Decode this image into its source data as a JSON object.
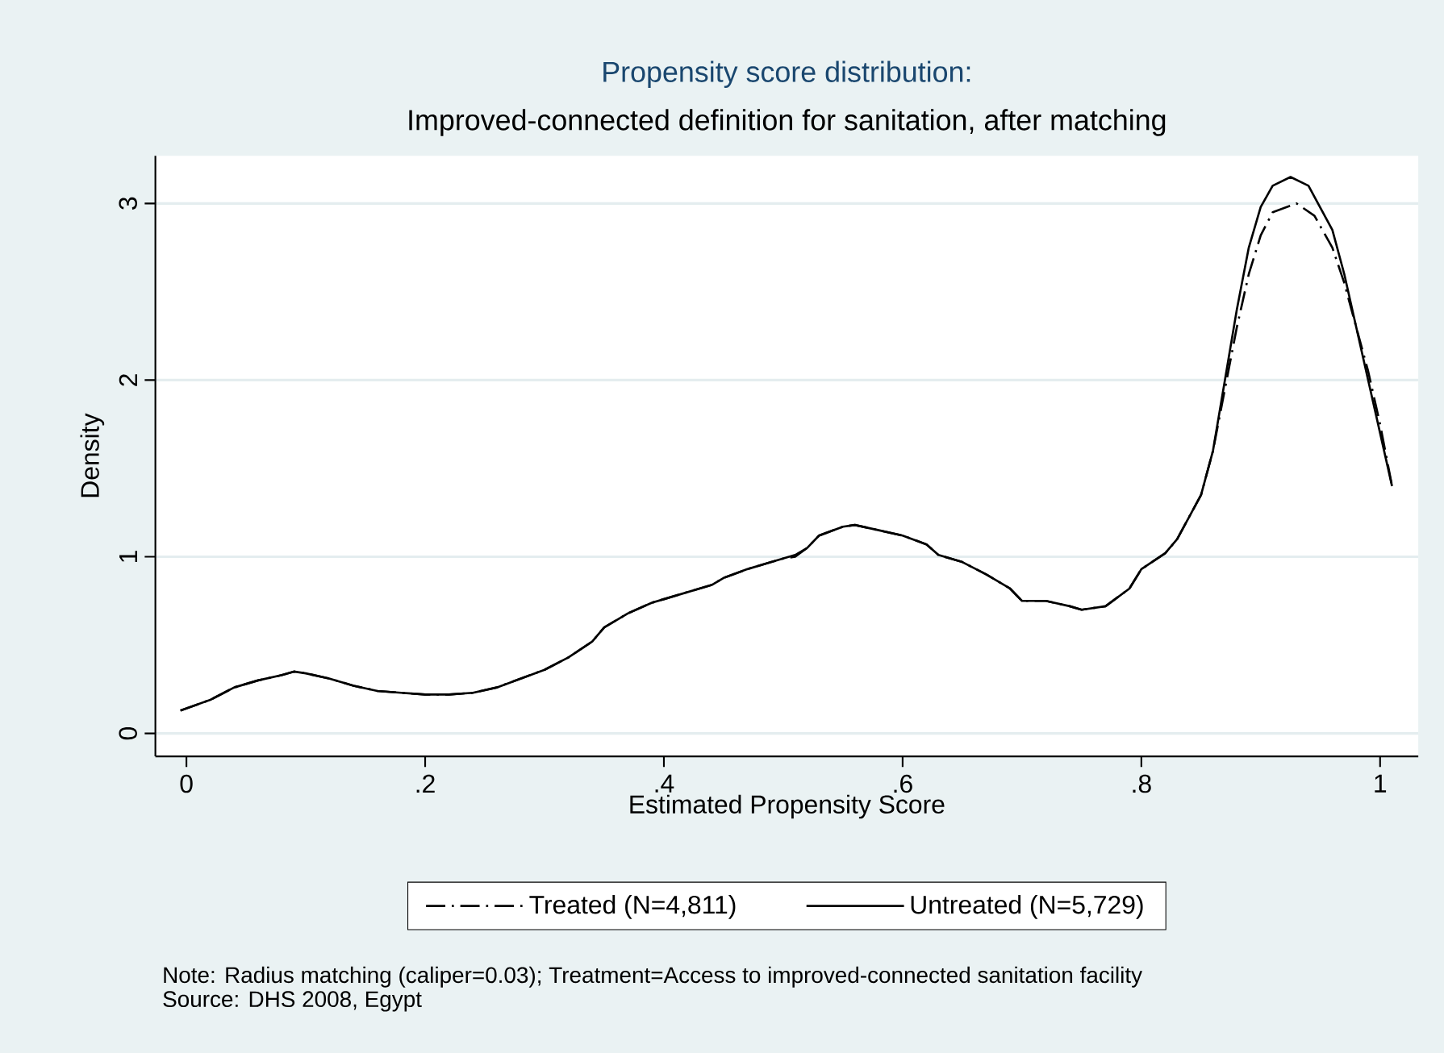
{
  "chart_data": {
    "type": "line",
    "title": "Propensity score distribution:",
    "subtitle": "Improved-connected definition for sanitation, after matching",
    "xlabel": "Estimated Propensity Score",
    "ylabel": "Density",
    "xlim": [
      -0.026,
      1.032
    ],
    "ylim": [
      -0.13,
      3.27
    ],
    "xticks": [
      0,
      {
        "value": 0.2,
        "label": ".2"
      },
      {
        "value": 0.4,
        "label": ".4"
      },
      {
        "value": 0.6,
        "label": ".6"
      },
      {
        "value": 0.8,
        "label": ".8"
      },
      1
    ],
    "yticks": [
      0,
      1,
      2,
      3
    ],
    "grid": "y",
    "legend": "bottom",
    "marker": "none",
    "series": [
      {
        "name": "Treated (N=4,811)",
        "color": "#000000",
        "line_style": "dashdot",
        "x": [
          -0.005,
          0.02,
          0.04,
          0.06,
          0.08,
          0.09,
          0.1,
          0.12,
          0.14,
          0.16,
          0.18,
          0.2,
          0.22,
          0.24,
          0.26,
          0.28,
          0.3,
          0.32,
          0.34,
          0.35,
          0.37,
          0.39,
          0.4,
          0.42,
          0.44,
          0.45,
          0.47,
          0.49,
          0.5,
          0.51,
          0.52,
          0.53,
          0.55,
          0.56,
          0.58,
          0.6,
          0.62,
          0.63,
          0.65,
          0.67,
          0.69,
          0.7,
          0.72,
          0.74,
          0.75,
          0.77,
          0.79,
          0.8,
          0.82,
          0.83,
          0.85,
          0.86,
          0.87,
          0.88,
          0.89,
          0.9,
          0.91,
          0.93,
          0.945,
          0.96,
          0.97,
          0.98,
          0.99,
          1.0,
          1.01
        ],
        "values": [
          0.13,
          0.19,
          0.26,
          0.3,
          0.33,
          0.35,
          0.34,
          0.31,
          0.27,
          0.24,
          0.23,
          0.22,
          0.22,
          0.23,
          0.26,
          0.31,
          0.36,
          0.43,
          0.52,
          0.6,
          0.68,
          0.74,
          0.76,
          0.8,
          0.84,
          0.88,
          0.93,
          0.97,
          0.99,
          1.0,
          1.05,
          1.12,
          1.17,
          1.18,
          1.15,
          1.12,
          1.07,
          1.01,
          0.97,
          0.9,
          0.82,
          0.75,
          0.75,
          0.72,
          0.7,
          0.72,
          0.82,
          0.93,
          1.02,
          1.1,
          1.35,
          1.6,
          1.95,
          2.3,
          2.6,
          2.82,
          2.95,
          3.0,
          2.93,
          2.75,
          2.55,
          2.3,
          2.05,
          1.75,
          1.4
        ]
      },
      {
        "name": "Untreated (N=5,729)",
        "color": "#000000",
        "line_style": "solid",
        "x": [
          -0.005,
          0.02,
          0.04,
          0.06,
          0.08,
          0.09,
          0.1,
          0.12,
          0.14,
          0.16,
          0.18,
          0.2,
          0.22,
          0.24,
          0.26,
          0.28,
          0.3,
          0.32,
          0.34,
          0.35,
          0.37,
          0.39,
          0.4,
          0.42,
          0.44,
          0.45,
          0.47,
          0.49,
          0.5,
          0.51,
          0.52,
          0.53,
          0.55,
          0.56,
          0.58,
          0.6,
          0.62,
          0.63,
          0.65,
          0.67,
          0.69,
          0.7,
          0.72,
          0.74,
          0.75,
          0.77,
          0.79,
          0.8,
          0.82,
          0.83,
          0.85,
          0.86,
          0.87,
          0.88,
          0.89,
          0.9,
          0.91,
          0.925,
          0.94,
          0.96,
          0.97,
          0.98,
          0.99,
          1.0,
          1.01
        ],
        "values": [
          0.13,
          0.19,
          0.26,
          0.3,
          0.33,
          0.35,
          0.34,
          0.31,
          0.27,
          0.24,
          0.23,
          0.22,
          0.22,
          0.23,
          0.26,
          0.31,
          0.36,
          0.43,
          0.52,
          0.6,
          0.68,
          0.74,
          0.76,
          0.8,
          0.84,
          0.88,
          0.93,
          0.97,
          0.99,
          1.01,
          1.05,
          1.12,
          1.17,
          1.18,
          1.15,
          1.12,
          1.07,
          1.01,
          0.97,
          0.9,
          0.82,
          0.75,
          0.75,
          0.72,
          0.7,
          0.72,
          0.82,
          0.93,
          1.02,
          1.1,
          1.35,
          1.6,
          2.0,
          2.4,
          2.75,
          2.98,
          3.1,
          3.15,
          3.1,
          2.85,
          2.6,
          2.3,
          2.0,
          1.7,
          1.4
        ]
      }
    ],
    "annotations": [
      "Note: Radius matching (caliper=0.03); Treatment=Access to improved-connected sanitation facility",
      "Source: DHS 2008, Egypt"
    ]
  }
}
